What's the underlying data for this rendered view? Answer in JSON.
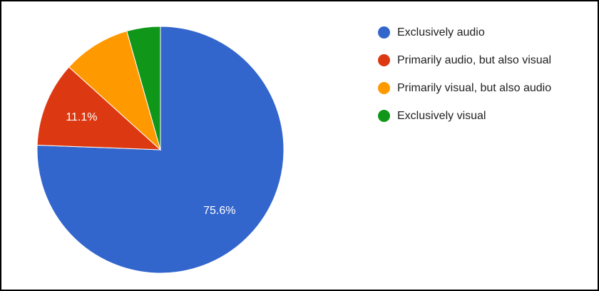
{
  "chart_data": {
    "type": "pie",
    "categories": [
      "Exclusively audio",
      "Primarily audio, but also visual",
      "Primarily visual, but also audio",
      "Exclusively visual"
    ],
    "values": [
      75.6,
      11.1,
      8.9,
      4.4
    ],
    "value_labels": [
      "75.6%",
      "11.1%",
      null,
      null
    ],
    "colors": [
      "#3366cc",
      "#dc3912",
      "#ff9900",
      "#109618"
    ],
    "legend": "right"
  }
}
